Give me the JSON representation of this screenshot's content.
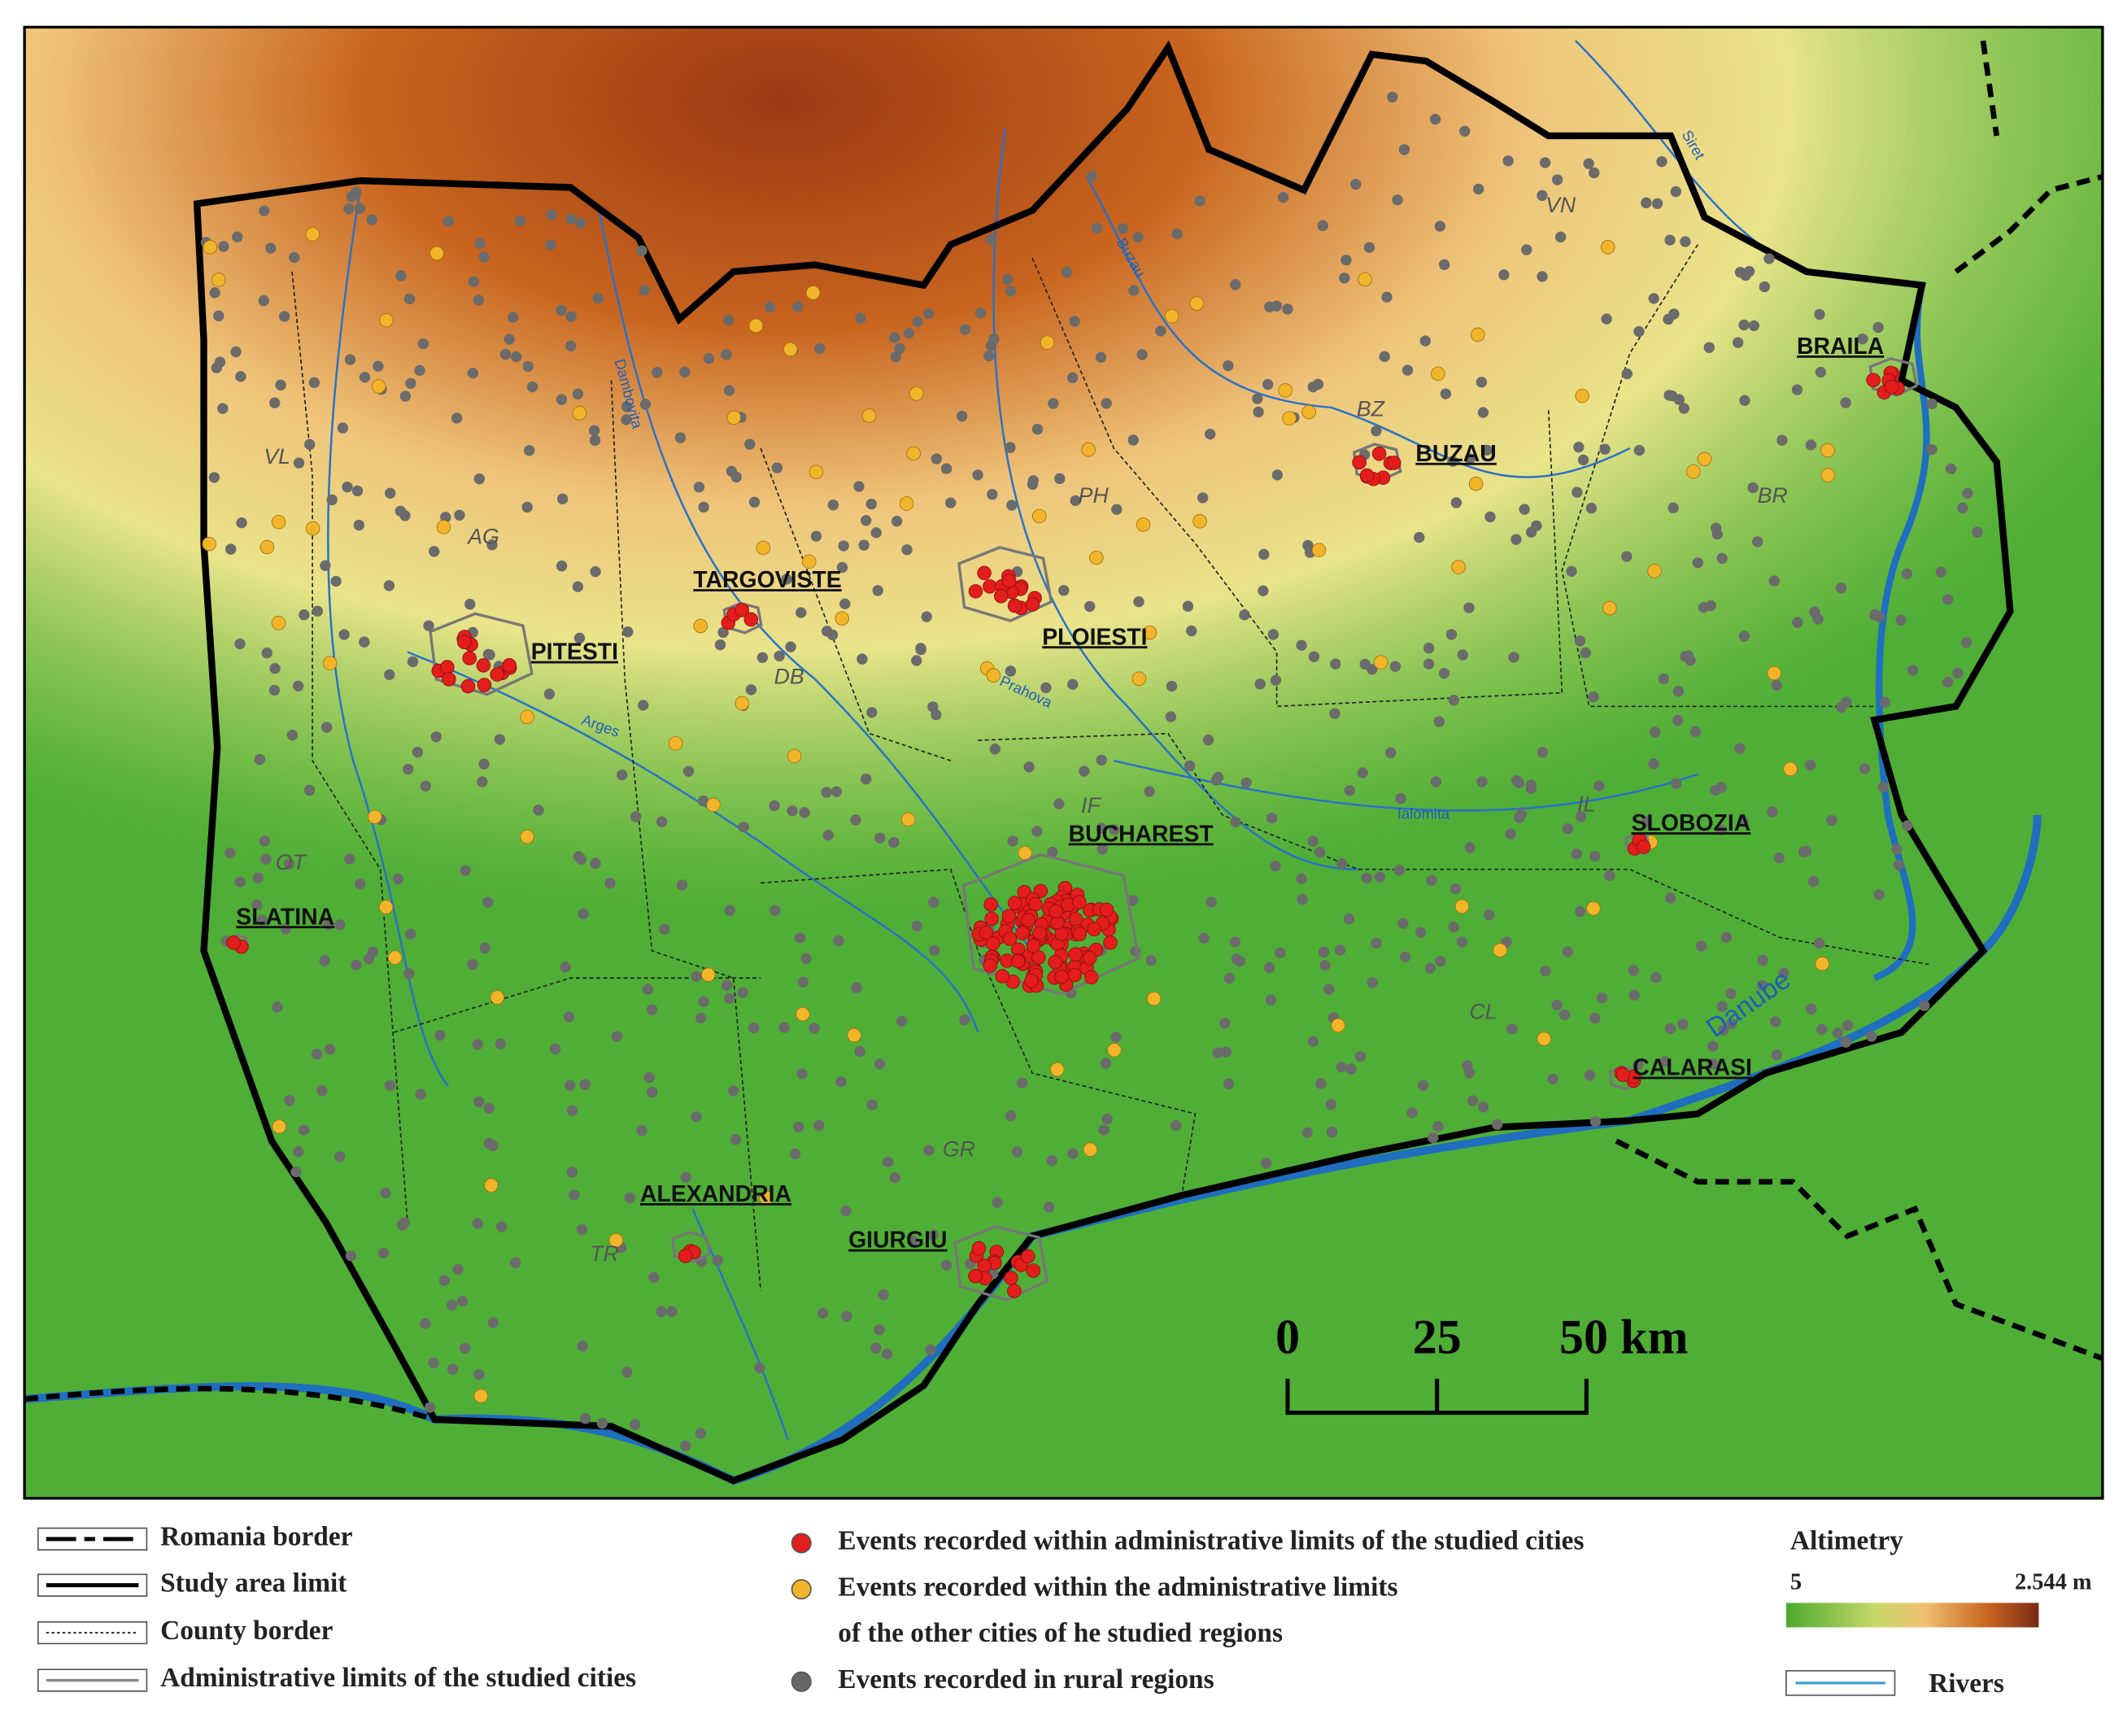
{
  "map": {
    "cities": [
      "BUCHAREST",
      "PITESTI",
      "TARGOVISTE",
      "PLOIESTI",
      "BUZAU",
      "BRAILA",
      "SLOBOZIA",
      "CALARASI",
      "SLATINA",
      "ALEXANDRIA",
      "GIURGIU"
    ],
    "counties": [
      "VL",
      "AG",
      "DB",
      "PH",
      "BZ",
      "VN",
      "BR",
      "IL",
      "IF",
      "OT",
      "CL",
      "GR",
      "TR"
    ],
    "rivers": [
      "Dambovita",
      "Arges",
      "Prahova",
      "Ialomita",
      "Buzau",
      "Siret",
      "Danube"
    ],
    "scale_bar": [
      "0",
      "25",
      "50 km"
    ]
  },
  "legend": {
    "lines": [
      "Romania border",
      "Study area limit",
      "County border",
      "Administrative limits of the studied cities"
    ],
    "events": {
      "studied_cities": "Events recorded within administrative limits of the studied cities",
      "other_cities": [
        "Events recorded within the administrative limits",
        "of the other cities of he studied regions"
      ],
      "rural": "Events recorded in rural regions"
    },
    "altimetry": {
      "title": "Altimetry",
      "min": "5",
      "max": "2.544 m"
    },
    "rivers": "Rivers"
  }
}
